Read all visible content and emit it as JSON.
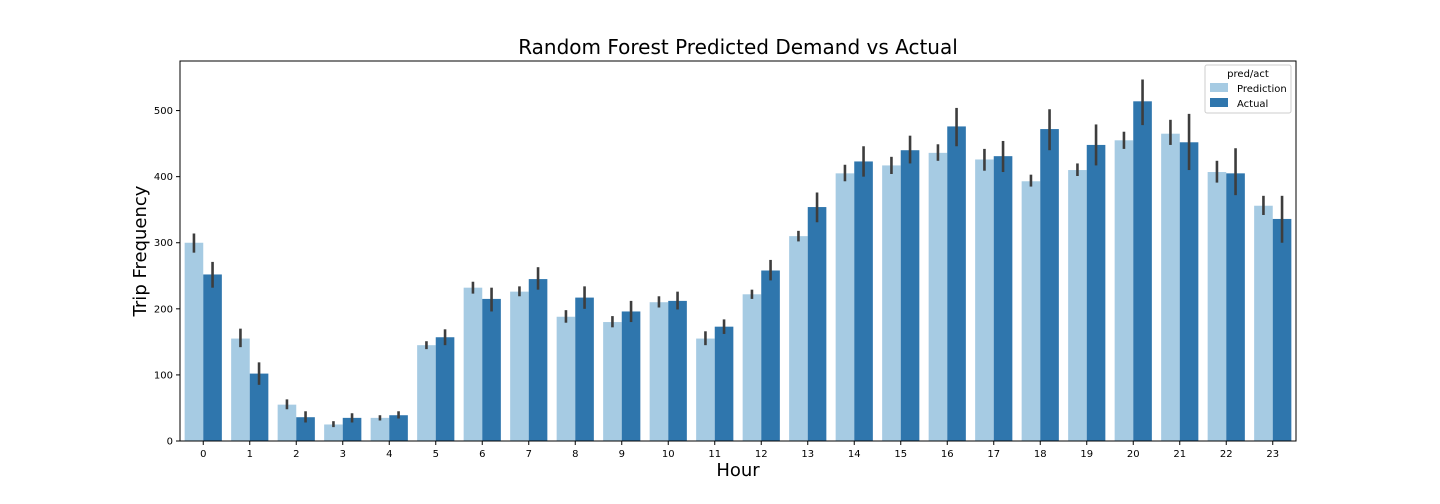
{
  "chart_data": {
    "type": "bar",
    "title": "Random Forest Predicted Demand vs Actual",
    "xlabel": "Hour",
    "ylabel": "Trip Frequency",
    "categories": [
      "0",
      "1",
      "2",
      "3",
      "4",
      "5",
      "6",
      "7",
      "8",
      "9",
      "10",
      "11",
      "12",
      "13",
      "14",
      "15",
      "16",
      "17",
      "18",
      "19",
      "20",
      "21",
      "22",
      "23"
    ],
    "ylim": [
      0,
      575
    ],
    "yticks": [
      0,
      100,
      200,
      300,
      400,
      500
    ],
    "grid": false,
    "legend": {
      "title": "pred/act",
      "placement": "top-right"
    },
    "series": [
      {
        "name": "Prediction",
        "color": "#a6cbe3",
        "values": [
          300,
          155,
          55,
          25,
          35,
          145,
          232,
          226,
          188,
          180,
          210,
          155,
          222,
          310,
          405,
          417,
          436,
          426,
          393,
          410,
          455,
          465,
          407,
          356
        ],
        "error_low": [
          285,
          142,
          48,
          21,
          31,
          139,
          223,
          219,
          179,
          172,
          202,
          145,
          215,
          302,
          393,
          404,
          424,
          409,
          385,
          401,
          442,
          448,
          391,
          342
        ],
        "error_high": [
          314,
          170,
          63,
          30,
          39,
          151,
          241,
          234,
          198,
          189,
          219,
          166,
          229,
          318,
          418,
          430,
          449,
          442,
          403,
          420,
          468,
          486,
          424,
          371
        ]
      },
      {
        "name": "Actual",
        "color": "#2f76ad",
        "values": [
          252,
          102,
          36,
          35,
          39,
          157,
          215,
          245,
          217,
          196,
          212,
          173,
          258,
          354,
          423,
          440,
          476,
          431,
          472,
          448,
          514,
          452,
          405,
          336
        ],
        "error_low": [
          232,
          85,
          28,
          28,
          34,
          145,
          196,
          229,
          200,
          180,
          199,
          162,
          243,
          331,
          400,
          420,
          446,
          407,
          440,
          417,
          478,
          410,
          372,
          300
        ],
        "error_high": [
          271,
          119,
          45,
          42,
          45,
          169,
          232,
          263,
          234,
          212,
          226,
          184,
          274,
          376,
          446,
          462,
          504,
          454,
          502,
          479,
          547,
          495,
          443,
          371
        ]
      }
    ]
  }
}
